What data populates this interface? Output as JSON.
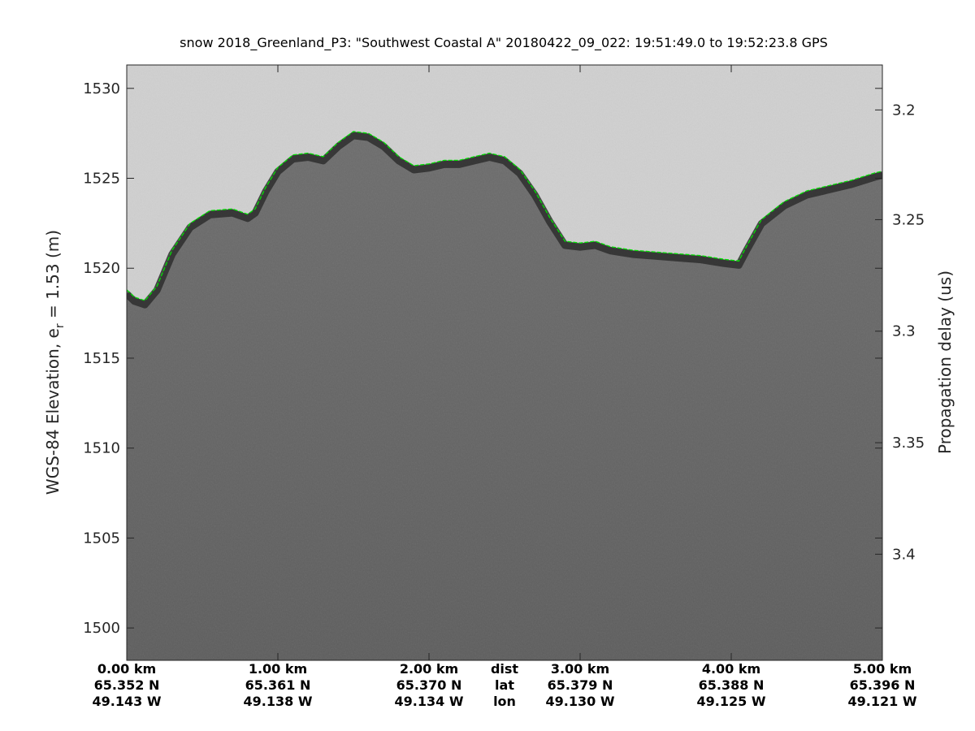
{
  "chart_data": {
    "type": "radar-echogram",
    "title": "snow 2018_Greenland_P3: \"Southwest Coastal A\"  20180422_09_022: 19:51:49.0 to 19:52:23.8 GPS",
    "ylabel_prefix": "WGS-84 Elevation, e",
    "ylabel_sub": "r",
    "ylabel_suffix": " = 1.53 (m)",
    "y2label": "Propagation delay (us)",
    "ylim": [
      1498.2,
      1531.3
    ],
    "yticks": [
      1500,
      1505,
      1510,
      1515,
      1520,
      1525,
      1530
    ],
    "y2ticks": [
      {
        "label": "3.2",
        "elevation": 1528.8
      },
      {
        "label": "3.25",
        "elevation": 1522.7
      },
      {
        "label": "3.3",
        "elevation": 1516.5
      },
      {
        "label": "3.35",
        "elevation": 1510.3
      },
      {
        "label": "3.4",
        "elevation": 1504.1
      }
    ],
    "xlim_km": [
      0,
      5
    ],
    "x_row_labels": [
      "dist",
      "lat",
      "lon"
    ],
    "x_ticks": [
      {
        "km": 0,
        "dist": "0.00 km",
        "lat": "65.352 N",
        "lon": "49.143 W"
      },
      {
        "km": 1,
        "dist": "1.00 km",
        "lat": "65.361 N",
        "lon": "49.138 W"
      },
      {
        "km": 2,
        "dist": "2.00 km",
        "lat": "65.370 N",
        "lon": "49.134 W"
      },
      {
        "km": 3,
        "dist": "3.00 km",
        "lat": "65.379 N",
        "lon": "49.130 W"
      },
      {
        "km": 4,
        "dist": "4.00 km",
        "lat": "65.388 N",
        "lon": "49.125 W"
      },
      {
        "km": 5,
        "dist": "5.00 km",
        "lat": "65.396 N",
        "lon": "49.121 W"
      }
    ],
    "surface_elevation": [
      [
        0.0,
        1518.8
      ],
      [
        0.05,
        1518.4
      ],
      [
        0.12,
        1518.2
      ],
      [
        0.2,
        1519.0
      ],
      [
        0.3,
        1521.0
      ],
      [
        0.42,
        1522.5
      ],
      [
        0.55,
        1523.2
      ],
      [
        0.7,
        1523.3
      ],
      [
        0.8,
        1523.0
      ],
      [
        0.85,
        1523.3
      ],
      [
        0.92,
        1524.5
      ],
      [
        1.0,
        1525.6
      ],
      [
        1.1,
        1526.3
      ],
      [
        1.2,
        1526.4
      ],
      [
        1.3,
        1526.2
      ],
      [
        1.4,
        1527.0
      ],
      [
        1.5,
        1527.6
      ],
      [
        1.6,
        1527.5
      ],
      [
        1.7,
        1527.0
      ],
      [
        1.8,
        1526.2
      ],
      [
        1.9,
        1525.7
      ],
      [
        2.0,
        1525.8
      ],
      [
        2.1,
        1526.0
      ],
      [
        2.2,
        1526.0
      ],
      [
        2.3,
        1526.2
      ],
      [
        2.4,
        1526.4
      ],
      [
        2.5,
        1526.2
      ],
      [
        2.6,
        1525.5
      ],
      [
        2.7,
        1524.3
      ],
      [
        2.8,
        1522.8
      ],
      [
        2.9,
        1521.5
      ],
      [
        3.0,
        1521.4
      ],
      [
        3.1,
        1521.5
      ],
      [
        3.2,
        1521.2
      ],
      [
        3.35,
        1521.0
      ],
      [
        3.5,
        1520.9
      ],
      [
        3.65,
        1520.8
      ],
      [
        3.8,
        1520.7
      ],
      [
        3.95,
        1520.5
      ],
      [
        4.05,
        1520.4
      ],
      [
        4.1,
        1521.2
      ],
      [
        4.2,
        1522.7
      ],
      [
        4.35,
        1523.7
      ],
      [
        4.5,
        1524.3
      ],
      [
        4.65,
        1524.6
      ],
      [
        4.8,
        1524.9
      ],
      [
        4.95,
        1525.3
      ],
      [
        5.0,
        1525.4
      ]
    ],
    "colors": {
      "sky": "#d0d0d0",
      "firn": "#6c6c6c",
      "deep": "#5d5d5d",
      "surface_band": "#2e2e2e",
      "layer_pick": "#00e000"
    }
  }
}
